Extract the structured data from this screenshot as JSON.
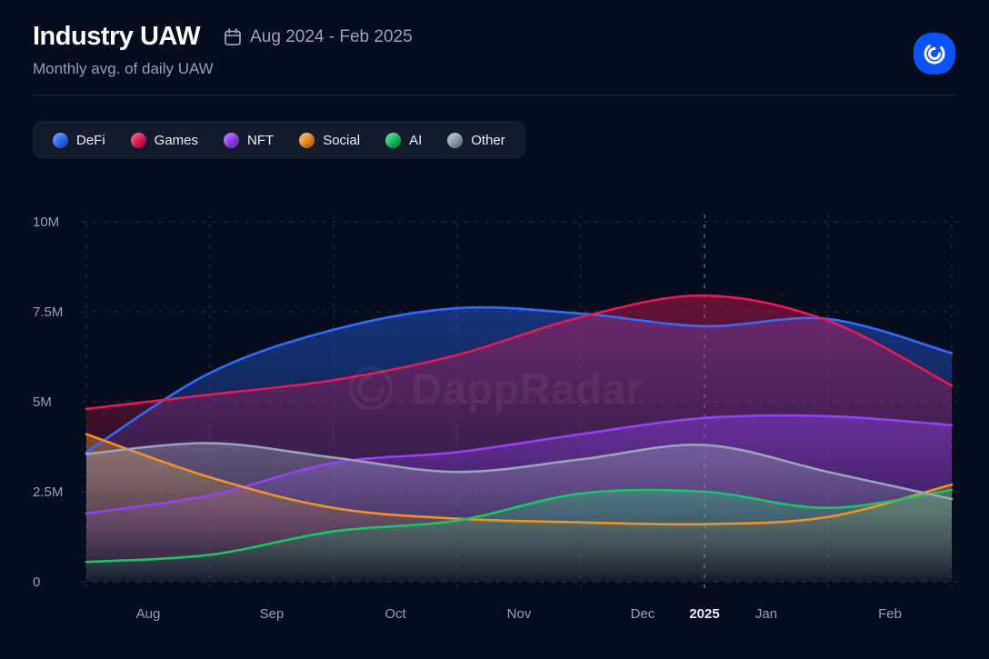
{
  "header": {
    "title": "Industry UAW",
    "date_range": "Aug 2024 - Feb 2025",
    "subtitle": "Monthly avg. of daily UAW"
  },
  "watermark": "DappRadar",
  "colors": {
    "background": "#050d1c",
    "legend_panel": "#141c2c",
    "grid": "#222c46",
    "grid_highlight": "#8d99b0",
    "text_primary": "#ffffff",
    "text_secondary": "#95a0b5",
    "logo_blue": "#0b53ff"
  },
  "chart_data": {
    "type": "area",
    "title": "Industry UAW",
    "subtitle": "Monthly avg. of daily UAW",
    "unit": "M (millions of unique active wallets)",
    "x": [
      0,
      1,
      2,
      3,
      4,
      5,
      6,
      7
    ],
    "x_points": [
      "Aug 2024",
      "Sep 2024",
      "Oct 2024",
      "Nov 2024",
      "Dec 2024",
      "Jan 2025",
      "Feb 2025",
      "Mar 2025"
    ],
    "x_labels": [
      {
        "text": "Aug",
        "pos": 0.5,
        "highlight": false
      },
      {
        "text": "Sep",
        "pos": 1.5,
        "highlight": false
      },
      {
        "text": "Oct",
        "pos": 2.5,
        "highlight": false
      },
      {
        "text": "Nov",
        "pos": 3.5,
        "highlight": false
      },
      {
        "text": "Dec",
        "pos": 4.5,
        "highlight": false
      },
      {
        "text": "2025",
        "pos": 5,
        "highlight": true
      },
      {
        "text": "Jan",
        "pos": 5.5,
        "highlight": false
      },
      {
        "text": "Feb",
        "pos": 6.5,
        "highlight": false
      }
    ],
    "y_ticks": [
      {
        "label": "0",
        "value": 0
      },
      {
        "label": "2.5M",
        "value": 2.5
      },
      {
        "label": "5M",
        "value": 5
      },
      {
        "label": "7.5M",
        "value": 7.5
      },
      {
        "label": "10M",
        "value": 10
      }
    ],
    "ylim": [
      0,
      10
    ],
    "grid": "dashed",
    "legend_position": "top-left",
    "series": [
      {
        "name": "DeFi",
        "color": "#2f6bff",
        "values": [
          3.6,
          5.8,
          7.0,
          7.6,
          7.45,
          7.1,
          7.3,
          6.35
        ]
      },
      {
        "name": "Games",
        "color": "#ea1757",
        "values": [
          4.8,
          5.2,
          5.6,
          6.3,
          7.35,
          7.95,
          7.25,
          5.45
        ]
      },
      {
        "name": "NFT",
        "color": "#9440f3",
        "values": [
          1.9,
          2.4,
          3.3,
          3.6,
          4.1,
          4.55,
          4.6,
          4.35
        ]
      },
      {
        "name": "Social",
        "color": "#ee9322",
        "values": [
          4.1,
          2.9,
          2.05,
          1.75,
          1.65,
          1.6,
          1.8,
          2.7
        ]
      },
      {
        "name": "AI",
        "color": "#17c568",
        "values": [
          0.55,
          0.75,
          1.4,
          1.7,
          2.45,
          2.5,
          2.05,
          2.55
        ]
      },
      {
        "name": "Other",
        "color": "#97a3b7",
        "values": [
          3.55,
          3.85,
          3.45,
          3.05,
          3.4,
          3.8,
          3.05,
          2.3
        ]
      }
    ]
  }
}
